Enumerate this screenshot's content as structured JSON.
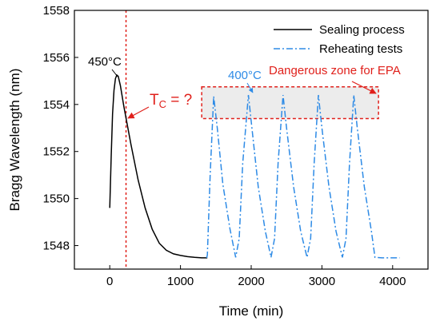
{
  "chart_data": {
    "type": "line",
    "xlabel": "Time (min)",
    "ylabel": "Bragg Wavelength (nm)",
    "xlim": [
      -500,
      4500
    ],
    "ylim": [
      1547,
      1558
    ],
    "x_ticks": [
      0,
      1000,
      2000,
      3000,
      4000
    ],
    "y_ticks": [
      1548,
      1550,
      1552,
      1554,
      1556,
      1558
    ],
    "grid": false,
    "legend_position": "top-right",
    "series": [
      {
        "name": "Sealing process",
        "color": "#000000",
        "style": "solid",
        "points": [
          [
            0,
            1549.6
          ],
          [
            20,
            1551.8
          ],
          [
            40,
            1553.6
          ],
          [
            60,
            1554.6
          ],
          [
            80,
            1555.1
          ],
          [
            100,
            1555.25
          ],
          [
            120,
            1555.2
          ],
          [
            150,
            1554.8
          ],
          [
            200,
            1553.9
          ],
          [
            300,
            1552.3
          ],
          [
            400,
            1550.8
          ],
          [
            500,
            1549.6
          ],
          [
            600,
            1548.7
          ],
          [
            700,
            1548.1
          ],
          [
            800,
            1547.8
          ],
          [
            900,
            1547.65
          ],
          [
            1000,
            1547.58
          ],
          [
            1100,
            1547.53
          ],
          [
            1200,
            1547.5
          ],
          [
            1300,
            1547.48
          ],
          [
            1380,
            1547.48
          ]
        ]
      },
      {
        "name": "Reheating tests",
        "color": "#2E8BE6",
        "style": "dashdot",
        "points": [
          [
            1370,
            1547.48
          ],
          [
            1380,
            1547.6
          ],
          [
            1420,
            1551.0
          ],
          [
            1470,
            1554.35
          ],
          [
            1520,
            1553.0
          ],
          [
            1600,
            1550.6
          ],
          [
            1700,
            1548.7
          ],
          [
            1780,
            1547.5
          ],
          [
            1830,
            1548.3
          ],
          [
            1880,
            1551.5
          ],
          [
            1960,
            1554.4
          ],
          [
            2010,
            1553.0
          ],
          [
            2100,
            1550.5
          ],
          [
            2200,
            1548.6
          ],
          [
            2280,
            1547.5
          ],
          [
            2330,
            1548.3
          ],
          [
            2380,
            1551.5
          ],
          [
            2450,
            1554.4
          ],
          [
            2500,
            1553.0
          ],
          [
            2600,
            1550.5
          ],
          [
            2700,
            1548.6
          ],
          [
            2790,
            1547.5
          ],
          [
            2840,
            1548.3
          ],
          [
            2890,
            1551.5
          ],
          [
            2950,
            1554.4
          ],
          [
            3000,
            1553.0
          ],
          [
            3100,
            1550.5
          ],
          [
            3200,
            1548.6
          ],
          [
            3290,
            1547.5
          ],
          [
            3340,
            1548.3
          ],
          [
            3390,
            1551.5
          ],
          [
            3450,
            1554.4
          ],
          [
            3500,
            1553.0
          ],
          [
            3600,
            1550.5
          ],
          [
            3700,
            1548.6
          ],
          [
            3750,
            1547.5
          ],
          [
            3850,
            1547.48
          ],
          [
            4100,
            1547.48
          ]
        ]
      }
    ],
    "vertical_line": {
      "x": 230,
      "color": "#E0201B",
      "style": "dotted"
    },
    "zone": {
      "x0": 1300,
      "x1": 3800,
      "y0": 1553.4,
      "y1": 1554.75,
      "label": "Dangerous zone for EPA",
      "color": "#E0201B"
    },
    "annotations": {
      "peak_label": "450°C",
      "reheat_label": "400°C",
      "tc_main": "T",
      "tc_sub": "C",
      "tc_rest": " = ?"
    }
  }
}
